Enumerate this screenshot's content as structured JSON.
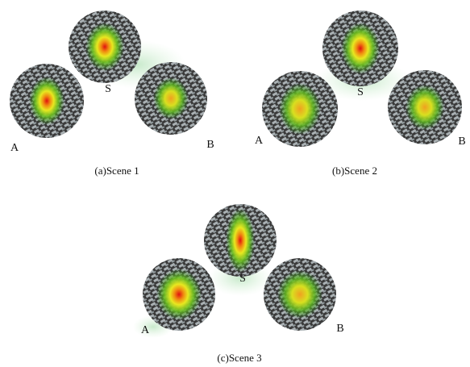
{
  "panels": [
    {
      "caption": "(a)Scene 1",
      "labels": {
        "s": "S",
        "a": "A",
        "b": "B"
      }
    },
    {
      "caption": "(b)Scene 2",
      "labels": {
        "s": "S",
        "a": "A",
        "b": "B"
      }
    },
    {
      "caption": "(c)Scene 3",
      "labels": {
        "s": "S",
        "a": "A",
        "b": "B"
      }
    }
  ]
}
